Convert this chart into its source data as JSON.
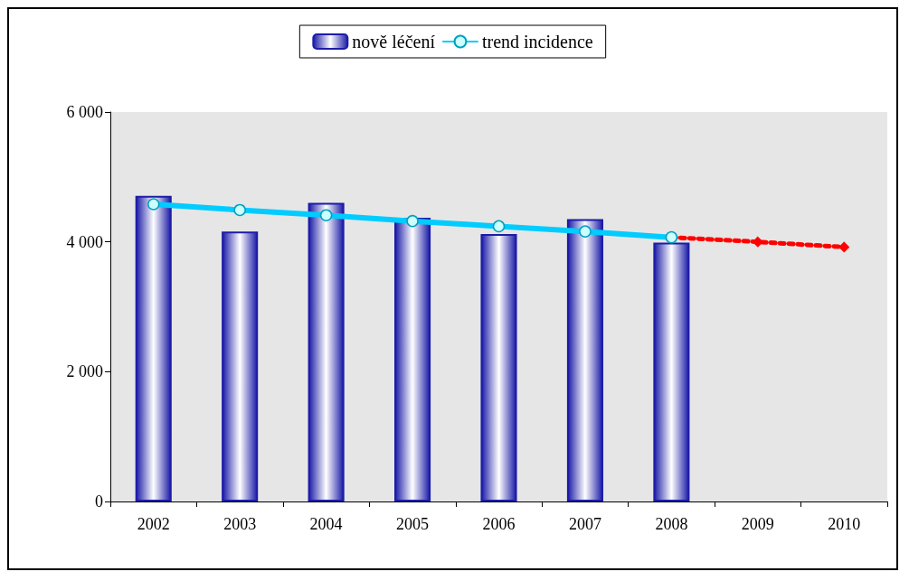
{
  "chart_data": {
    "type": "bar",
    "categories": [
      "2002",
      "2003",
      "2004",
      "2005",
      "2006",
      "2007",
      "2008",
      "2009",
      "2010"
    ],
    "series": [
      {
        "name": "nově léčení",
        "color": "#1c1ca8",
        "values": [
          4710,
          4160,
          4600,
          4370,
          4120,
          4350,
          3990,
          null,
          null
        ]
      },
      {
        "name": "trend incidence",
        "type": "line",
        "color": "#00ccff",
        "marker": "circle",
        "line_style": "solid",
        "values": [
          4580,
          4490,
          4410,
          4320,
          4240,
          4160,
          4070,
          null,
          null
        ]
      },
      {
        "type": "line",
        "color": "#ff0000",
        "marker": "diamond",
        "line_style": "dotted",
        "values": [
          null,
          null,
          null,
          null,
          null,
          null,
          4070,
          4000,
          3920
        ]
      }
    ],
    "ylim": [
      0,
      6000
    ],
    "yticks": [
      {
        "value": 0,
        "label": "0"
      },
      {
        "value": 2000,
        "label": "2 000"
      },
      {
        "value": 4000,
        "label": "4 000"
      },
      {
        "value": 6000,
        "label": "6 000"
      }
    ],
    "grid": false,
    "legend": "top"
  }
}
